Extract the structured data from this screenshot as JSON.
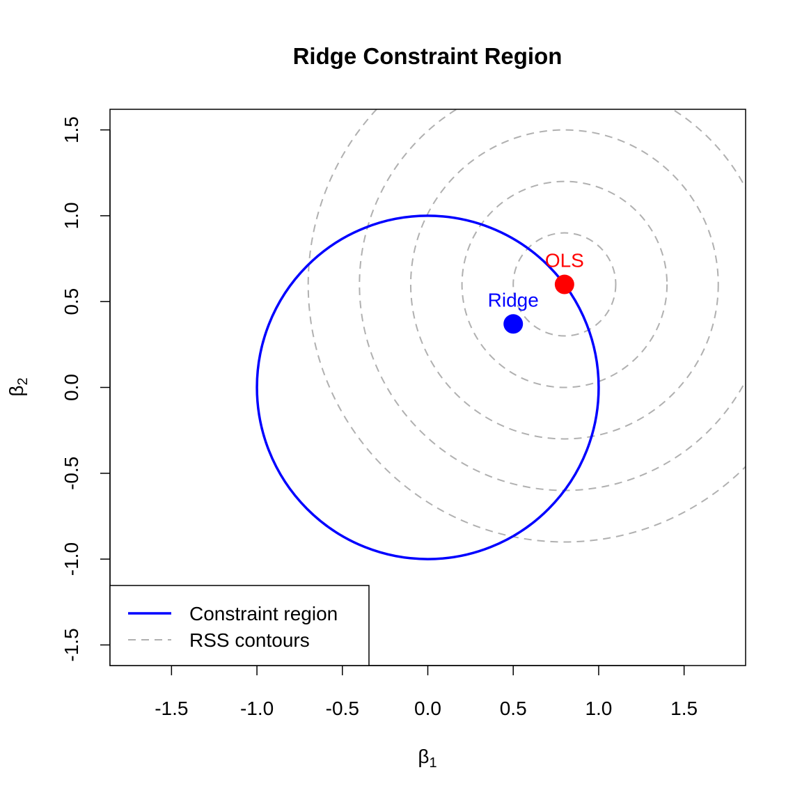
{
  "chart_data": {
    "type": "scatter",
    "title": "Ridge Constraint Region",
    "xlabel": {
      "symbol": "β",
      "subscript": "1"
    },
    "ylabel": {
      "symbol": "β",
      "subscript": "2"
    },
    "xlim": [
      -1.86,
      1.86
    ],
    "ylim": [
      -1.62,
      1.62
    ],
    "x_ticks": [
      -1.5,
      -1.0,
      -0.5,
      0.0,
      0.5,
      1.0,
      1.5
    ],
    "x_tick_labels": [
      "-1.5",
      "-1.0",
      "-0.5",
      "0.0",
      "0.5",
      "1.0",
      "1.5"
    ],
    "y_ticks": [
      -1.5,
      -1.0,
      -0.5,
      0.0,
      0.5,
      1.0,
      1.5
    ],
    "y_tick_labels": [
      "-1.5",
      "-1.0",
      "-0.5",
      "0.0",
      "0.5",
      "1.0",
      "1.5"
    ],
    "grid": false,
    "constraint_region": {
      "center": [
        0,
        0
      ],
      "radius": 1.0,
      "color": "#0000FF"
    },
    "rss_contours": {
      "center": [
        0.8,
        0.6
      ],
      "radii": [
        0.3,
        0.6,
        0.9,
        1.2,
        1.5
      ],
      "color": "#B0B0B0"
    },
    "points": [
      {
        "label": "OLS",
        "x": 0.8,
        "y": 0.6,
        "color": "#FF0000"
      },
      {
        "label": "Ridge",
        "x": 0.5,
        "y": 0.37,
        "color": "#0000FF"
      }
    ],
    "legend": {
      "position": "bottom-left",
      "entries": [
        {
          "label": "Constraint region",
          "style": "solid",
          "color": "#0000FF"
        },
        {
          "label": "RSS contours",
          "style": "dashed",
          "color": "#B0B0B0"
        }
      ]
    }
  }
}
